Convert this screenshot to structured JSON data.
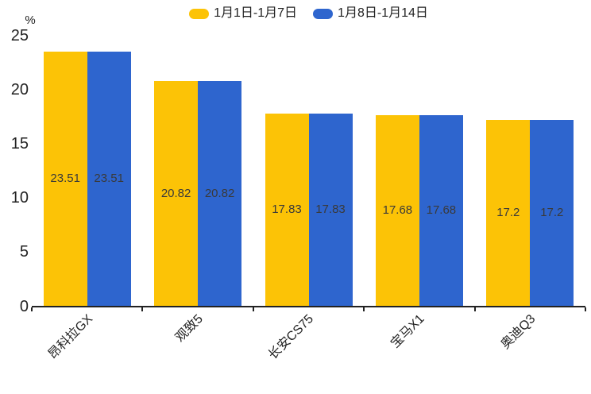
{
  "chart_data": {
    "type": "bar",
    "title": "",
    "ylabel": "%",
    "xlabel": "",
    "categories": [
      "昂科拉GX",
      "观致5",
      "长安CS75",
      "宝马X1",
      "奥迪Q3"
    ],
    "series": [
      {
        "name": "1月1日-1月7日",
        "color": "#FCC306",
        "values": [
          23.51,
          20.82,
          17.83,
          17.68,
          17.2
        ]
      },
      {
        "name": "1月8日-1月14日",
        "color": "#2E65CE",
        "values": [
          23.51,
          20.82,
          17.83,
          17.68,
          17.2
        ]
      }
    ],
    "yticks": [
      0,
      5,
      10,
      15,
      20,
      25
    ],
    "ylim": [
      0,
      25
    ],
    "grid": false,
    "legend_position": "top-center",
    "value_labels": "inside-middle"
  },
  "colors": {
    "axis": "#222222",
    "tick_text": "#222222",
    "value_text": "#3a3a3a",
    "background": "#ffffff"
  }
}
